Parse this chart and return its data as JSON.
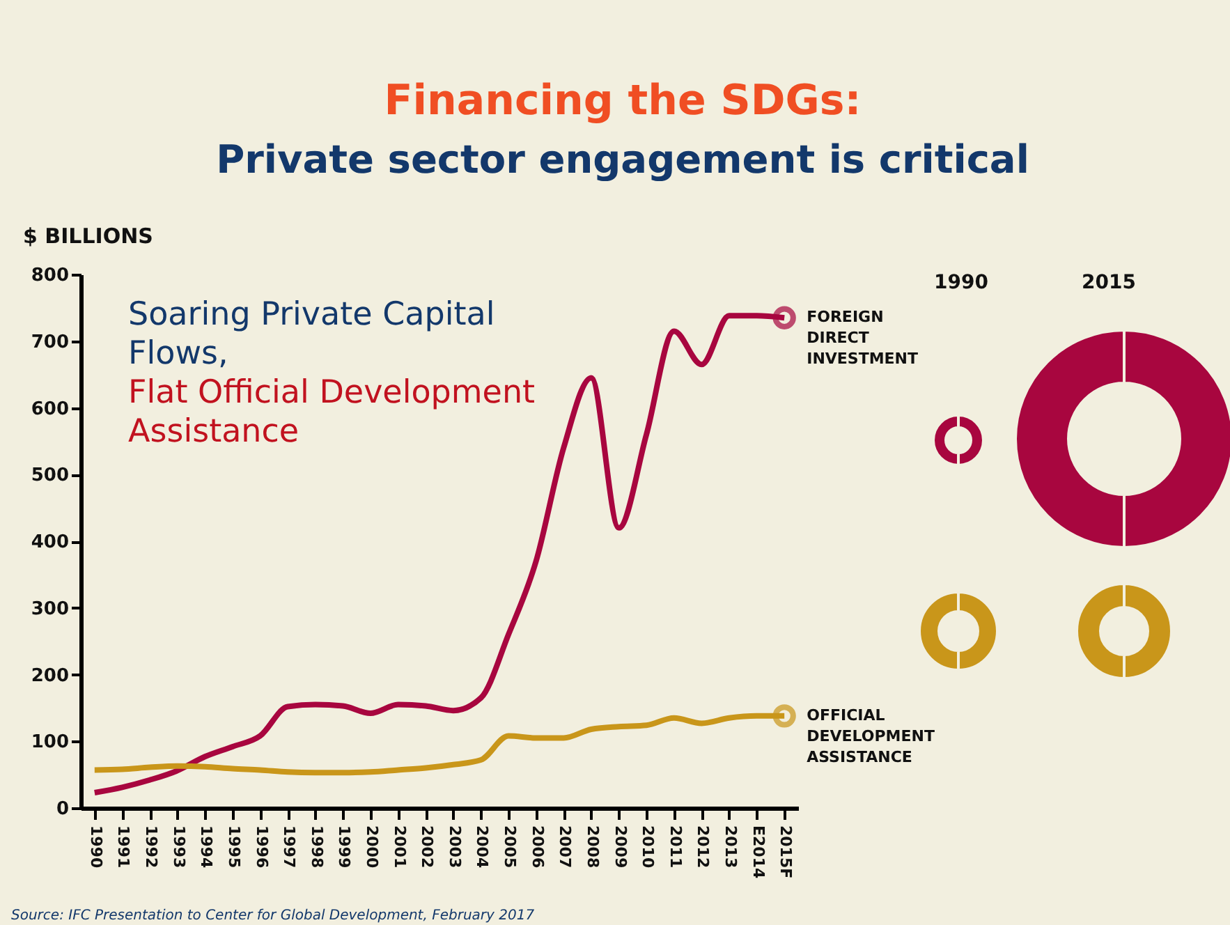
{
  "chart_data": {
    "type": "line",
    "title": "Financing the SDGs:",
    "subtitle": "Private sector engagement is critical",
    "ylabel": "$ BILLIONS",
    "categories": [
      "1990",
      "1991",
      "1992",
      "1993",
      "1994",
      "1995",
      "1996",
      "1997",
      "1998",
      "1999",
      "2000",
      "2001",
      "2002",
      "2003",
      "2004",
      "2005",
      "2006",
      "2007",
      "2008",
      "2009",
      "2010",
      "2011",
      "2012",
      "2013",
      "E2014",
      "2015F"
    ],
    "series": [
      {
        "name": "FOREIGN DIRECT INVESTMENT",
        "color": "#a8063f",
        "values": [
          23,
          31,
          42,
          56,
          77,
          92,
          108,
          152,
          155,
          153,
          142,
          155,
          153,
          146,
          165,
          260,
          370,
          540,
          645,
          420,
          560,
          715,
          665,
          738,
          738,
          735
        ]
      },
      {
        "name": "OFFICIAL DEVELOPMENT ASSISTANCE",
        "color": "#c9961a",
        "values": [
          57,
          58,
          61,
          63,
          62,
          59,
          57,
          54,
          53,
          53,
          54,
          57,
          60,
          65,
          72,
          108,
          105,
          105,
          118,
          122,
          124,
          135,
          127,
          135,
          138,
          138
        ]
      }
    ],
    "ylim": [
      0,
      800
    ],
    "yticks": [
      0,
      100,
      200,
      300,
      400,
      500,
      600,
      700,
      800
    ],
    "grid": false,
    "legend": false,
    "annotations": [
      "Soaring Private Capital Flows,",
      "Flat Official Development Assistance",
      "1990",
      "2015",
      "Source: IFC Presentation to Center for Global Development, February 2017"
    ]
  }
}
